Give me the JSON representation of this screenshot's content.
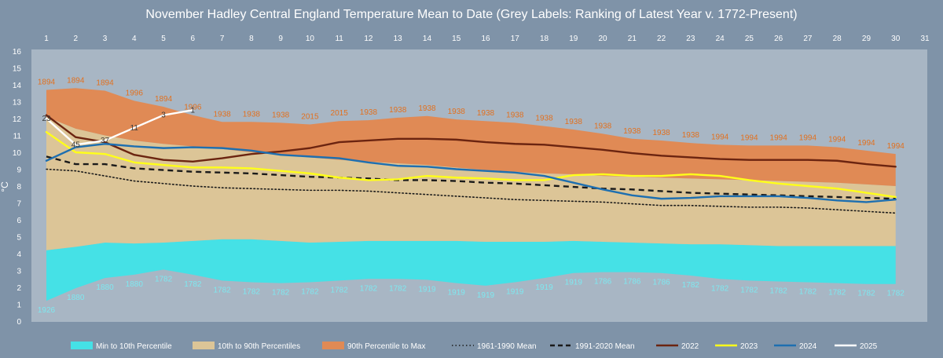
{
  "chart_data": {
    "type": "area",
    "title": "November Hadley Central England Temperature Mean to Date (Grey Labels: Ranking of Latest Year v. 1772-Present)",
    "xlabel": "",
    "ylabel": "°C",
    "xlim": [
      1,
      31
    ],
    "ylim": [
      0,
      16
    ],
    "x_ticks": [
      1,
      2,
      3,
      4,
      5,
      6,
      7,
      8,
      9,
      10,
      11,
      12,
      13,
      14,
      15,
      16,
      17,
      18,
      19,
      20,
      21,
      22,
      23,
      24,
      25,
      26,
      27,
      28,
      29,
      30,
      31
    ],
    "y_ticks": [
      0,
      1,
      2,
      3,
      4,
      5,
      6,
      7,
      8,
      9,
      10,
      11,
      12,
      13,
      14,
      15,
      16
    ],
    "x_axis_position": "top",
    "legend_position": "bottom",
    "grid": false,
    "days": [
      1,
      2,
      3,
      4,
      5,
      6,
      7,
      8,
      9,
      10,
      11,
      12,
      13,
      14,
      15,
      16,
      17,
      18,
      19,
      20,
      21,
      22,
      23,
      24,
      25,
      26,
      27,
      28,
      29,
      30
    ],
    "min": [
      1.2,
      1.95,
      2.55,
      2.75,
      3.05,
      2.75,
      2.4,
      2.3,
      2.25,
      2.3,
      2.4,
      2.5,
      2.5,
      2.45,
      2.25,
      2.1,
      2.3,
      2.55,
      2.85,
      2.9,
      2.9,
      2.85,
      2.7,
      2.5,
      2.4,
      2.35,
      2.3,
      2.25,
      2.2,
      2.2
    ],
    "p10": [
      4.2,
      4.4,
      4.65,
      4.6,
      4.65,
      4.75,
      4.85,
      4.85,
      4.75,
      4.65,
      4.7,
      4.75,
      4.75,
      4.75,
      4.75,
      4.7,
      4.7,
      4.7,
      4.75,
      4.7,
      4.65,
      4.6,
      4.55,
      4.55,
      4.5,
      4.45,
      4.45,
      4.45,
      4.45,
      4.45
    ],
    "p90": [
      12.1,
      11.4,
      11.0,
      10.7,
      10.5,
      10.35,
      10.2,
      10.0,
      9.85,
      9.7,
      9.55,
      9.45,
      9.35,
      9.25,
      9.1,
      8.95,
      8.85,
      8.75,
      8.7,
      8.6,
      8.55,
      8.5,
      8.45,
      8.4,
      8.35,
      8.3,
      8.25,
      8.2,
      8.1,
      8.0
    ],
    "max": [
      13.7,
      13.8,
      13.65,
      13.05,
      12.7,
      12.2,
      11.8,
      11.8,
      11.75,
      11.65,
      11.85,
      11.9,
      12.05,
      12.15,
      11.95,
      11.85,
      11.75,
      11.55,
      11.35,
      11.1,
      10.8,
      10.7,
      10.55,
      10.45,
      10.4,
      10.4,
      10.4,
      10.3,
      10.1,
      9.9
    ],
    "series": [
      {
        "name": "Min to 10th Percentile",
        "color": "#45e1e6",
        "style": "band"
      },
      {
        "name": "10th to 90th Percentiles",
        "color": "#dcc597",
        "style": "band"
      },
      {
        "name": "90th Percentile to Max",
        "color": "#e08a55",
        "style": "band"
      },
      {
        "name": "1961-1990 Mean",
        "color": "#1a1a1a",
        "style": "dotted",
        "values": [
          9.0,
          8.9,
          8.6,
          8.3,
          8.15,
          8.0,
          7.9,
          7.85,
          7.8,
          7.75,
          7.75,
          7.7,
          7.6,
          7.5,
          7.4,
          7.3,
          7.2,
          7.15,
          7.1,
          7.05,
          6.95,
          6.85,
          6.85,
          6.8,
          6.75,
          6.75,
          6.7,
          6.6,
          6.5,
          6.4
        ]
      },
      {
        "name": "1991-2020 Mean",
        "color": "#1a1a1a",
        "style": "dashed",
        "values": [
          9.75,
          9.3,
          9.3,
          9.05,
          8.95,
          8.85,
          8.8,
          8.75,
          8.65,
          8.55,
          8.5,
          8.45,
          8.35,
          8.35,
          8.3,
          8.2,
          8.15,
          8.05,
          7.95,
          7.85,
          7.8,
          7.7,
          7.6,
          7.55,
          7.5,
          7.45,
          7.4,
          7.35,
          7.3,
          7.25
        ]
      },
      {
        "name": "2022",
        "color": "#6b2410",
        "style": "solid",
        "values": [
          12.2,
          10.9,
          10.6,
          9.85,
          9.55,
          9.45,
          9.65,
          9.9,
          10.05,
          10.25,
          10.6,
          10.7,
          10.8,
          10.8,
          10.75,
          10.6,
          10.5,
          10.45,
          10.3,
          10.15,
          9.95,
          9.8,
          9.7,
          9.6,
          9.55,
          9.55,
          9.55,
          9.5,
          9.3,
          9.15
        ]
      },
      {
        "name": "2023",
        "color": "#ffff1a",
        "style": "solid",
        "values": [
          11.2,
          10.0,
          9.9,
          9.4,
          9.25,
          9.1,
          9.1,
          9.05,
          8.9,
          8.75,
          8.5,
          8.35,
          8.4,
          8.6,
          8.5,
          8.45,
          8.35,
          8.35,
          8.65,
          8.7,
          8.6,
          8.6,
          8.7,
          8.6,
          8.35,
          8.15,
          8.0,
          7.85,
          7.6,
          7.35
        ]
      },
      {
        "name": "2024",
        "color": "#1e6fb0",
        "style": "solid",
        "values": [
          9.5,
          10.3,
          10.5,
          10.35,
          10.25,
          10.3,
          10.25,
          10.1,
          9.85,
          9.75,
          9.65,
          9.4,
          9.2,
          9.15,
          9.0,
          8.9,
          8.8,
          8.6,
          8.2,
          7.8,
          7.45,
          7.25,
          7.3,
          7.4,
          7.4,
          7.4,
          7.3,
          7.15,
          7.05,
          7.2
        ]
      },
      {
        "name": "2025",
        "color": "#ffffff",
        "style": "solid",
        "values": [
          12.0,
          10.45,
          10.7,
          11.45,
          12.2,
          12.5
        ]
      }
    ],
    "record_high_labels": [
      {
        "day": 1,
        "value": 13.7,
        "label": "1894"
      },
      {
        "day": 2,
        "value": 13.8,
        "label": "1894"
      },
      {
        "day": 3,
        "value": 13.65,
        "label": "1894"
      },
      {
        "day": 4,
        "value": 13.05,
        "label": "1996"
      },
      {
        "day": 5,
        "value": 12.7,
        "label": "1894"
      },
      {
        "day": 6,
        "value": 12.2,
        "label": "1996"
      },
      {
        "day": 7,
        "value": 11.8,
        "label": "1938"
      },
      {
        "day": 8,
        "value": 11.8,
        "label": "1938"
      },
      {
        "day": 9,
        "value": 11.75,
        "label": "1938"
      },
      {
        "day": 10,
        "value": 11.65,
        "label": "2015"
      },
      {
        "day": 11,
        "value": 11.85,
        "label": "2015"
      },
      {
        "day": 12,
        "value": 11.9,
        "label": "1938"
      },
      {
        "day": 13,
        "value": 12.05,
        "label": "1938"
      },
      {
        "day": 14,
        "value": 12.15,
        "label": "1938"
      },
      {
        "day": 15,
        "value": 11.95,
        "label": "1938"
      },
      {
        "day": 16,
        "value": 11.85,
        "label": "1938"
      },
      {
        "day": 17,
        "value": 11.75,
        "label": "1938"
      },
      {
        "day": 18,
        "value": 11.55,
        "label": "1938"
      },
      {
        "day": 19,
        "value": 11.35,
        "label": "1938"
      },
      {
        "day": 20,
        "value": 11.1,
        "label": "1938"
      },
      {
        "day": 21,
        "value": 10.8,
        "label": "1938"
      },
      {
        "day": 22,
        "value": 10.7,
        "label": "1938"
      },
      {
        "day": 23,
        "value": 10.55,
        "label": "1938"
      },
      {
        "day": 24,
        "value": 10.45,
        "label": "1994"
      },
      {
        "day": 25,
        "value": 10.4,
        "label": "1994"
      },
      {
        "day": 26,
        "value": 10.4,
        "label": "1994"
      },
      {
        "day": 27,
        "value": 10.4,
        "label": "1994"
      },
      {
        "day": 28,
        "value": 10.3,
        "label": "1994"
      },
      {
        "day": 29,
        "value": 10.1,
        "label": "1994"
      },
      {
        "day": 30,
        "value": 9.9,
        "label": "1994"
      }
    ],
    "record_low_labels": [
      {
        "day": 1,
        "value": 1.2,
        "label": "1926"
      },
      {
        "day": 2,
        "value": 1.95,
        "label": "1880"
      },
      {
        "day": 3,
        "value": 2.55,
        "label": "1880"
      },
      {
        "day": 4,
        "value": 2.75,
        "label": "1880"
      },
      {
        "day": 5,
        "value": 3.05,
        "label": "1782"
      },
      {
        "day": 6,
        "value": 2.75,
        "label": "1782"
      },
      {
        "day": 7,
        "value": 2.4,
        "label": "1782"
      },
      {
        "day": 8,
        "value": 2.3,
        "label": "1782"
      },
      {
        "day": 9,
        "value": 2.25,
        "label": "1782"
      },
      {
        "day": 10,
        "value": 2.3,
        "label": "1782"
      },
      {
        "day": 11,
        "value": 2.4,
        "label": "1782"
      },
      {
        "day": 12,
        "value": 2.5,
        "label": "1782"
      },
      {
        "day": 13,
        "value": 2.5,
        "label": "1782"
      },
      {
        "day": 14,
        "value": 2.45,
        "label": "1919"
      },
      {
        "day": 15,
        "value": 2.25,
        "label": "1919"
      },
      {
        "day": 16,
        "value": 2.1,
        "label": "1919"
      },
      {
        "day": 17,
        "value": 2.3,
        "label": "1919"
      },
      {
        "day": 18,
        "value": 2.55,
        "label": "1919"
      },
      {
        "day": 19,
        "value": 2.85,
        "label": "1919"
      },
      {
        "day": 20,
        "value": 2.9,
        "label": "1786"
      },
      {
        "day": 21,
        "value": 2.9,
        "label": "1786"
      },
      {
        "day": 22,
        "value": 2.85,
        "label": "1786"
      },
      {
        "day": 23,
        "value": 2.7,
        "label": "1782"
      },
      {
        "day": 24,
        "value": 2.5,
        "label": "1782"
      },
      {
        "day": 25,
        "value": 2.4,
        "label": "1782"
      },
      {
        "day": 26,
        "value": 2.35,
        "label": "1782"
      },
      {
        "day": 27,
        "value": 2.3,
        "label": "1782"
      },
      {
        "day": 28,
        "value": 2.25,
        "label": "1782"
      },
      {
        "day": 29,
        "value": 2.2,
        "label": "1782"
      },
      {
        "day": 30,
        "value": 2.2,
        "label": "1782"
      }
    ],
    "rank_labels": [
      {
        "day": 1,
        "value": 12.0,
        "label": "23"
      },
      {
        "day": 2,
        "value": 10.45,
        "label": "45"
      },
      {
        "day": 3,
        "value": 10.7,
        "label": "37"
      },
      {
        "day": 4,
        "value": 11.45,
        "label": "11"
      },
      {
        "day": 5,
        "value": 12.2,
        "label": "3"
      },
      {
        "day": 6,
        "value": 12.5,
        "label": "1"
      }
    ]
  }
}
